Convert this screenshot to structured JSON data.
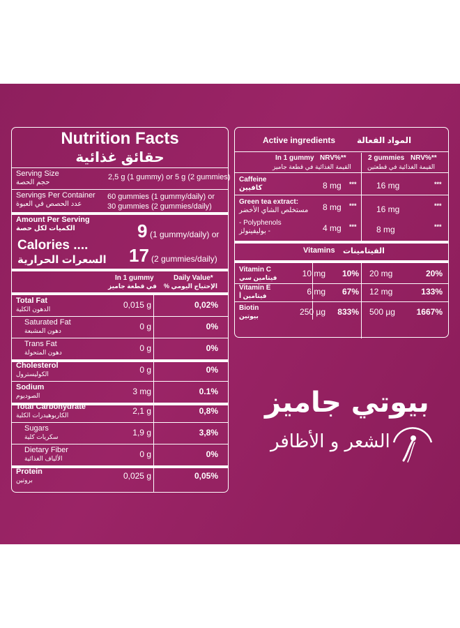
{
  "nutrition": {
    "title": "Nutrition Facts",
    "title_ar": "حقائق غذائية",
    "serving_size_label": "Serving Size",
    "serving_size_label_ar": "حجم الحصة",
    "serving_size_value": "2,5 g (1 gummy) or 5 g (2 gummies)",
    "servings_label": "Servings Per Container",
    "servings_label_ar": "عدد الحصص في العبوة",
    "servings_value_1": "60 gummies (1 gummy/daily) or",
    "servings_value_2": "30 gummies (2 gummies/daily)",
    "amount_label": "Amount Per Serving",
    "amount_label_ar": "الكميات لكل حصة",
    "calories_label": "Calories ....",
    "calories_label_ar": "السعرات الحرارية",
    "cal_value_1": "9",
    "cal_note_1": "(1 gummy/daily) or",
    "cal_value_2": "17",
    "cal_note_2": "(2 gummies/daily)",
    "col1_header": "In 1 gummy",
    "col1_header_ar": "في قطعة جاميز",
    "col2_header": "Daily Value*",
    "col2_header_ar": "الإحتياج اليومي %",
    "rows": [
      {
        "name": "Total Fat",
        "name_ar": "الدهون الكلية",
        "amount": "0,015 g",
        "dv": "0,02%"
      },
      {
        "name": "Saturated Fat",
        "name_ar": "دهون المشبعة",
        "amount": "0 g",
        "dv": "0%"
      },
      {
        "name": "Trans Fat",
        "name_ar": "دهون المتحولة",
        "amount": "0 g",
        "dv": "0%"
      },
      {
        "name": "Cholesterol",
        "name_ar": "الكوليسترول",
        "amount": "0 g",
        "dv": "0%"
      },
      {
        "name": "Sodium",
        "name_ar": "الصوديوم",
        "amount": "3 mg",
        "dv": "0.1%"
      },
      {
        "name": "Total Carbohydrate",
        "name_ar": "الكاربوهيدرات الكلية",
        "amount": "2,1 g",
        "dv": "0,8%"
      },
      {
        "name": "Sugars",
        "name_ar": "سكريات كلية",
        "amount": "1,9 g",
        "dv": "3,8%"
      },
      {
        "name": "Dietary Fiber",
        "name_ar": "الألياف الغذائية",
        "amount": "0 g",
        "dv": "0%"
      },
      {
        "name": "Protein",
        "name_ar": "بروتين",
        "amount": "0,025 g",
        "dv": "0,05%"
      }
    ]
  },
  "active": {
    "title": "Active ingredients",
    "title_ar": "المواد الفعالة",
    "h1": "In 1 gummy",
    "h1_nrv": "NRV%**",
    "h1_ar": "القيمة الغذائية في قطعة جاميز",
    "h2": "2 gummies",
    "h2_nrv": "NRV%**",
    "h2_ar": "القيمة الغذائية في قطعتين",
    "caffeine": "Caffeine",
    "caffeine_ar": "كافيين",
    "caffeine_1": "8 mg",
    "caffeine_2": "16 mg",
    "gte": "Green tea extract:",
    "gte_ar": "مستخلص الشاي الأخضر",
    "gte_1": "8 mg",
    "gte_2": "16 mg",
    "poly": "- Polyphenols",
    "poly_ar": "- بوليفينولز",
    "poly_1": "4 mg",
    "poly_2": "8 mg",
    "stars": "***",
    "vitamins": "Vitamins",
    "vitamins_ar": "الفيتامينات",
    "vit": [
      {
        "name": "Vitamin C",
        "name_ar": "فيتامين سي",
        "a1": "10 mg",
        "n1": "10%",
        "a2": "20 mg",
        "n2": "20%"
      },
      {
        "name": "Vitamin E",
        "name_ar": "فيتامين أ",
        "a1": "6 mg",
        "n1": "67%",
        "a2": "12 mg",
        "n2": "133%"
      },
      {
        "name": "Biotin",
        "name_ar": "بيوتين",
        "a1": "250 µg",
        "n1": "833%",
        "a2": "500 µg",
        "n2": "1667%"
      }
    ]
  },
  "brand": {
    "name_ar": "بيوتي جاميز",
    "tagline_ar": "الشعر و الأظافر"
  },
  "colors": {
    "background": "#9b2466",
    "foreground": "#ffffff",
    "page": "#ffffff"
  }
}
